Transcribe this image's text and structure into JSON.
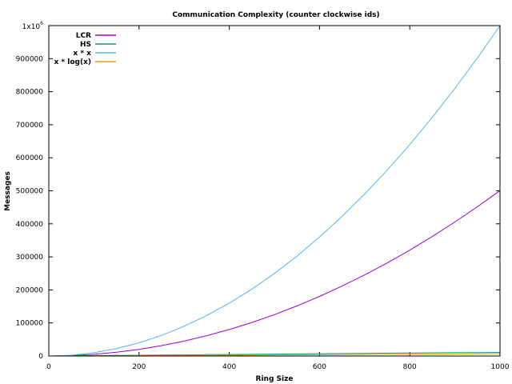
{
  "chart_data": {
    "type": "line",
    "title": "Communication Complexity (counter clockwise ids)",
    "xlabel": "Ring Size",
    "ylabel": "Messages",
    "xlim": [
      0,
      1000
    ],
    "ylim": [
      0,
      1000000
    ],
    "x_ticks": [
      0,
      200,
      400,
      600,
      800,
      1000
    ],
    "x_tick_labels": [
      "0",
      "200",
      "400",
      "600",
      "800",
      "1000"
    ],
    "y_ticks": [
      0,
      100000,
      200000,
      300000,
      400000,
      500000,
      600000,
      700000,
      800000,
      900000,
      1000000
    ],
    "y_tick_labels": [
      "0",
      "100000",
      "200000",
      "300000",
      "400000",
      "500000",
      "600000",
      "700000",
      "800000",
      "900000",
      ""
    ],
    "y_top_label_base": "1x10",
    "y_top_label_exp": "6",
    "grid": false,
    "legend_position": "top-left",
    "x": [
      10,
      50,
      100,
      150,
      200,
      250,
      300,
      350,
      400,
      450,
      500,
      550,
      600,
      650,
      700,
      750,
      800,
      850,
      900,
      950,
      1000
    ],
    "series": [
      {
        "name": "LCR",
        "color": "#9400d3",
        "values": [
          55,
          1275,
          5050,
          11325,
          20100,
          31375,
          45150,
          61425,
          80200,
          101475,
          125250,
          151525,
          180300,
          211575,
          245350,
          281625,
          320400,
          361675,
          405450,
          451725,
          500500
        ]
      },
      {
        "name": "HS",
        "color": "#009e73",
        "values": [
          60,
          500,
          1100,
          1700,
          2300,
          2900,
          3500,
          4100,
          4600,
          5200,
          5800,
          6400,
          7000,
          7500,
          8100,
          8700,
          9200,
          9700,
          10100,
          10500,
          11000
        ]
      },
      {
        "name": "x * x",
        "color": "#56b4e9",
        "values": [
          100,
          2500,
          10000,
          22500,
          40000,
          62500,
          90000,
          122500,
          160000,
          202500,
          250000,
          302500,
          360000,
          422500,
          490000,
          562500,
          640000,
          722500,
          810000,
          902500,
          1000000
        ]
      },
      {
        "name": "x * log(x)",
        "color": "#e69f00",
        "values": [
          23,
          196,
          461,
          752,
          1060,
          1380,
          1711,
          2053,
          2397,
          2749,
          3107,
          3471,
          3838,
          4210,
          4586,
          4965,
          5348,
          5735,
          6122,
          6514,
          6908
        ]
      }
    ]
  }
}
